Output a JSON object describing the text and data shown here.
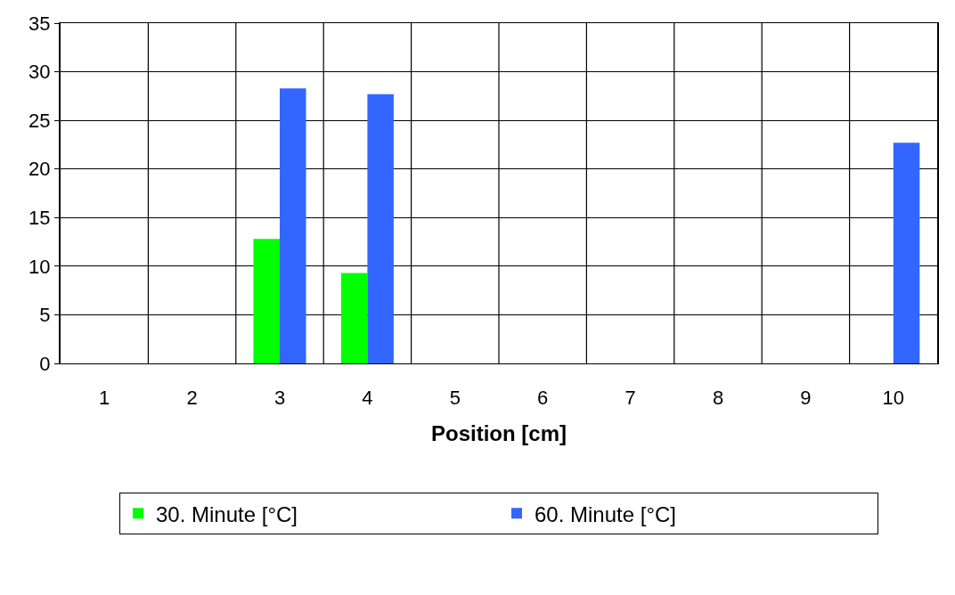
{
  "chart_data": {
    "type": "bar",
    "xlabel": "Position [cm]",
    "categories": [
      "1",
      "2",
      "3",
      "4",
      "5",
      "6",
      "7",
      "8",
      "9",
      "10"
    ],
    "series": [
      {
        "name": "30. Minute [°C]",
        "color": "#00ff00",
        "values": [
          0,
          0,
          12.8,
          9.3,
          0,
          0,
          0,
          0,
          0,
          0
        ]
      },
      {
        "name": "60. Minute [°C]",
        "color": "#3366ff",
        "values": [
          0,
          0,
          28.3,
          27.7,
          0,
          0,
          0,
          0,
          0,
          22.7
        ]
      }
    ],
    "ylim": [
      0,
      35
    ],
    "yticks": [
      0,
      5,
      10,
      15,
      20,
      25,
      30,
      35
    ],
    "grid": true,
    "legend": "bottom"
  }
}
